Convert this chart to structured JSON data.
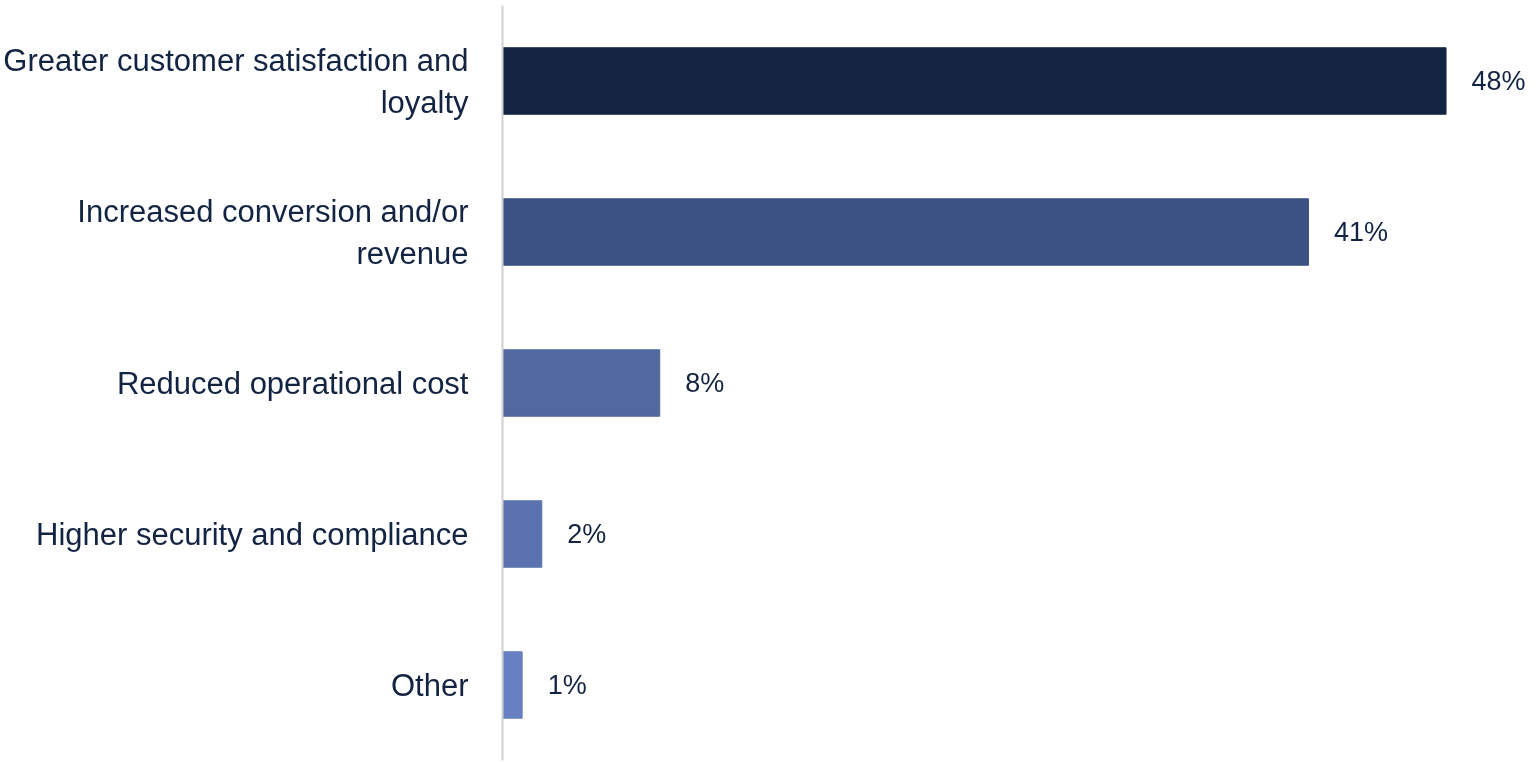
{
  "chart_data": {
    "type": "bar",
    "orientation": "horizontal",
    "categories": [
      "Greater customer satisfaction and loyalty",
      "Increased conversion and/or revenue",
      "Reduced operational cost",
      "Higher security and compliance",
      "Other"
    ],
    "values": [
      48,
      41,
      8,
      2,
      1
    ],
    "colors": [
      "#132442",
      "#3b5282",
      "#51699f",
      "#5a73ae",
      "#6680c2"
    ],
    "tick_labels": "y",
    "value_labels": [
      "48%",
      "41%",
      "8%",
      "2%",
      "1%"
    ]
  }
}
